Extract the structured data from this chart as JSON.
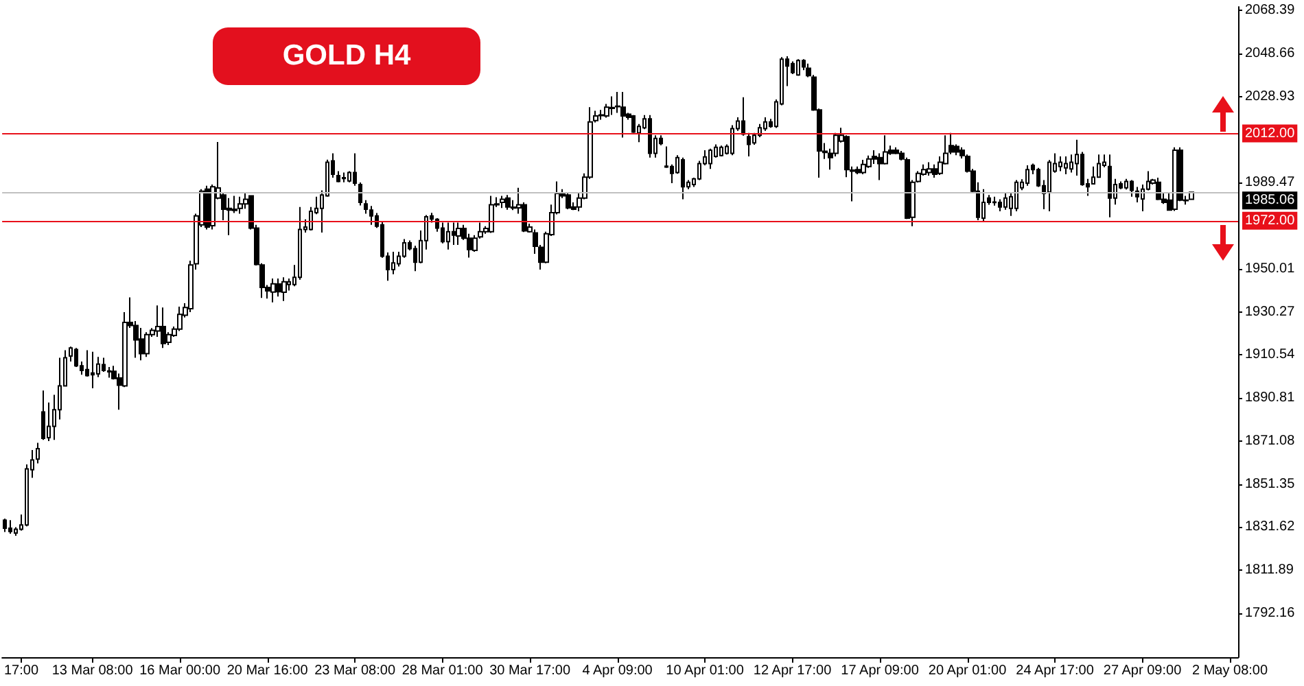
{
  "chart_data": {
    "type": "candlestick",
    "title": "GOLD H4",
    "color": "#000000",
    "categories": [
      null,
      null,
      null,
      "17:00",
      null,
      null,
      null,
      null,
      null,
      null,
      null,
      null,
      null,
      null,
      null,
      null,
      "13 Mar 08:00",
      null,
      null,
      null,
      null,
      null,
      null,
      null,
      null,
      null,
      null,
      null,
      null,
      null,
      null,
      null,
      "16 Mar 00:00",
      null,
      null,
      null,
      null,
      null,
      null,
      null,
      null,
      null,
      null,
      null,
      null,
      null,
      null,
      null,
      "20 Mar 16:00",
      null,
      null,
      null,
      null,
      null,
      null,
      null,
      null,
      null,
      null,
      null,
      null,
      null,
      null,
      null,
      "23 Mar 08:00",
      null,
      null,
      null,
      null,
      null,
      null,
      null,
      null,
      null,
      null,
      null,
      null,
      null,
      null,
      null,
      "28 Mar 01:00",
      null,
      null,
      null,
      null,
      null,
      null,
      null,
      null,
      null,
      null,
      null,
      null,
      null,
      null,
      null,
      "30 Mar 17:00",
      null,
      null,
      null,
      null,
      null,
      null,
      null,
      null,
      null,
      null,
      null,
      null,
      null,
      null,
      null,
      "4 Apr 09:00",
      null,
      null,
      null,
      null,
      null,
      null,
      null,
      null,
      null,
      null,
      null,
      null,
      null,
      null,
      null,
      "10 Apr 01:00",
      null,
      null,
      null,
      null,
      null,
      null,
      null,
      null,
      null,
      null,
      null,
      null,
      null,
      null,
      null,
      "12 Apr 17:00",
      null,
      null,
      null,
      null,
      null,
      null,
      null,
      null,
      null,
      null,
      null,
      null,
      null,
      null,
      null,
      "17 Apr 09:00",
      null,
      null,
      null,
      null,
      null,
      null,
      null,
      null,
      null,
      null,
      null,
      null,
      null,
      null,
      null,
      "20 Apr 01:00",
      null,
      null,
      null,
      null,
      null,
      null,
      null,
      null,
      null,
      null,
      null,
      null,
      null,
      null,
      null,
      "24 Apr 17:00",
      null,
      null,
      null,
      null,
      null,
      null,
      null,
      null,
      null,
      null,
      null,
      null,
      null,
      null,
      null,
      "27 Apr 09:00",
      null,
      null,
      null,
      null,
      null,
      null,
      null,
      null,
      null,
      null,
      null,
      null,
      null,
      null,
      null,
      "2 May 08:00",
      null
    ],
    "ohlc": [
      [
        1834.8,
        1835.5,
        1829.4,
        1831.1
      ],
      [
        1831.1,
        1834.8,
        1828.6,
        1829.6
      ],
      [
        1828.9,
        1831.6,
        1827.6,
        1830.6
      ],
      [
        1830.6,
        1837.4,
        1830.0,
        1832.6
      ],
      [
        1832.6,
        1860.3,
        1832.0,
        1858.3
      ],
      [
        1857.9,
        1866.9,
        1854.2,
        1862.4
      ],
      [
        1862.8,
        1870.2,
        1860.8,
        1867.6
      ],
      [
        1884.4,
        1894.2,
        1871.6,
        1872.3
      ],
      [
        1872.6,
        1888.7,
        1871.0,
        1877.8
      ],
      [
        1877.8,
        1892.2,
        1871.6,
        1885.4
      ],
      [
        1885.4,
        1909.2,
        1880.9,
        1896.3
      ],
      [
        1896.3,
        1912.7,
        1896.0,
        1909.2
      ],
      [
        1910.0,
        1914.3,
        1907.5,
        1913.7
      ],
      [
        1913.0,
        1913.7,
        1905.0,
        1905.5
      ],
      [
        1905.5,
        1907.5,
        1901.4,
        1903.4
      ],
      [
        1903.8,
        1912.7,
        1900.6,
        1901.0
      ],
      [
        1902.2,
        1912.0,
        1895.2,
        1901.4
      ],
      [
        1901.8,
        1909.6,
        1900.3,
        1906.3
      ],
      [
        1906.1,
        1909.2,
        1902.8,
        1903.4
      ],
      [
        1903.2,
        1905.0,
        1900.1,
        1902.8
      ],
      [
        1903.0,
        1905.5,
        1899.2,
        1899.7
      ],
      [
        1899.9,
        1902.0,
        1885.4,
        1896.6
      ],
      [
        1896.3,
        1930.1,
        1895.8,
        1925.4
      ],
      [
        1925.4,
        1936.9,
        1922.9,
        1924.0
      ],
      [
        1924.0,
        1926.0,
        1909.2,
        1917.4
      ],
      [
        1917.8,
        1922.9,
        1908.0,
        1911.1
      ],
      [
        1911.1,
        1920.9,
        1909.6,
        1919.8
      ],
      [
        1919.8,
        1922.8,
        1918.8,
        1921.8
      ],
      [
        1921.5,
        1933.2,
        1918.8,
        1923.5
      ],
      [
        1923.5,
        1932.2,
        1913.7,
        1915.7
      ],
      [
        1916.3,
        1920.9,
        1915.0,
        1919.8
      ],
      [
        1919.4,
        1923.5,
        1918.8,
        1922.3
      ],
      [
        1922.3,
        1932.6,
        1921.5,
        1929.1
      ],
      [
        1928.7,
        1934.2,
        1927.7,
        1932.2
      ],
      [
        1931.7,
        1953.7,
        1930.1,
        1951.7
      ],
      [
        1952.3,
        1975.2,
        1949.6,
        1974.2
      ],
      [
        1970.1,
        1986.5,
        1969.1,
        1985.5
      ],
      [
        1986.5,
        1988.0,
        1968.0,
        1969.1
      ],
      [
        1969.7,
        1988.6,
        1968.0,
        1987.6
      ],
      [
        1982.4,
        2008.1,
        1981.8,
        1987.0
      ],
      [
        1983.8,
        1984.5,
        1972.2,
        1977.3
      ],
      [
        1977.7,
        1982.4,
        1965.4,
        1976.9
      ],
      [
        1977.3,
        1983.4,
        1975.5,
        1976.7
      ],
      [
        1977.7,
        1983.0,
        1975.2,
        1979.7
      ],
      [
        1979.7,
        1984.5,
        1977.5,
        1981.8
      ],
      [
        1983.4,
        1983.6,
        1968.0,
        1968.6
      ],
      [
        1968.6,
        1970.1,
        1951.5,
        1952.0
      ],
      [
        1951.7,
        1952.5,
        1936.6,
        1941.4
      ],
      [
        1941.4,
        1942.5,
        1936.3,
        1939.9
      ],
      [
        1939.3,
        1945.5,
        1934.6,
        1943.1
      ],
      [
        1943.0,
        1945.5,
        1937.3,
        1939.5
      ],
      [
        1939.2,
        1946.1,
        1935.2,
        1944.0
      ],
      [
        1942.8,
        1945.5,
        1940.0,
        1944.0
      ],
      [
        1942.8,
        1951.7,
        1942.0,
        1946.1
      ],
      [
        1946.1,
        1978.3,
        1945.0,
        1968.0
      ],
      [
        1968.0,
        1972.6,
        1966.6,
        1969.1
      ],
      [
        1968.0,
        1978.3,
        1967.5,
        1976.3
      ],
      [
        1975.7,
        1983.0,
        1975.0,
        1977.7
      ],
      [
        1977.7,
        1985.9,
        1966.6,
        1983.8
      ],
      [
        1983.4,
        2000.0,
        1983.0,
        1998.8
      ],
      [
        1999.4,
        2002.9,
        1991.7,
        1993.3
      ],
      [
        1992.7,
        1994.7,
        1989.6,
        1990.0
      ],
      [
        1991.7,
        1994.1,
        1989.6,
        1991.3
      ],
      [
        1990.2,
        1994.7,
        1989.6,
        1994.1
      ],
      [
        1994.1,
        2002.9,
        1988.0,
        1989.2
      ],
      [
        1988.6,
        1989.5,
        1979.0,
        1980.4
      ],
      [
        1979.7,
        1981.4,
        1975.2,
        1977.3
      ],
      [
        1976.9,
        1978.8,
        1970.1,
        1974.2
      ],
      [
        1974.2,
        1975.5,
        1968.7,
        1969.5
      ],
      [
        1970.1,
        1971.5,
        1955.0,
        1955.7
      ],
      [
        1955.7,
        1957.5,
        1944.5,
        1949.6
      ],
      [
        1949.6,
        1957.8,
        1947.5,
        1952.7
      ],
      [
        1952.3,
        1957.8,
        1951.0,
        1955.7
      ],
      [
        1955.7,
        1963.6,
        1955.0,
        1961.9
      ],
      [
        1961.9,
        1963.0,
        1958.4,
        1959.2
      ],
      [
        1959.2,
        1960.5,
        1948.9,
        1953.0
      ],
      [
        1953.0,
        1967.5,
        1952.5,
        1962.9
      ],
      [
        1962.9,
        1974.6,
        1958.8,
        1973.8
      ],
      [
        1974.2,
        1975.6,
        1971.1,
        1972.8
      ],
      [
        1972.6,
        1973.2,
        1967.0,
        1968.6
      ],
      [
        1968.6,
        1971.1,
        1961.6,
        1962.4
      ],
      [
        1962.4,
        1971.1,
        1958.8,
        1967.0
      ],
      [
        1967.0,
        1971.1,
        1960.9,
        1965.4
      ],
      [
        1965.0,
        1971.1,
        1960.9,
        1968.5
      ],
      [
        1968.5,
        1970.1,
        1963.2,
        1964.0
      ],
      [
        1964.0,
        1966.0,
        1955.1,
        1958.8
      ],
      [
        1958.4,
        1965.4,
        1957.8,
        1964.0
      ],
      [
        1964.6,
        1971.1,
        1963.8,
        1967.0
      ],
      [
        1967.0,
        1969.5,
        1966.0,
        1968.5
      ],
      [
        1967.0,
        1983.4,
        1966.4,
        1979.3
      ],
      [
        1979.3,
        1982.8,
        1978.3,
        1979.7
      ],
      [
        1980.4,
        1983.4,
        1977.8,
        1981.8
      ],
      [
        1982.4,
        1983.8,
        1977.0,
        1978.3
      ],
      [
        1978.2,
        1981.4,
        1976.9,
        1977.8
      ],
      [
        1977.9,
        1987.1,
        1975.2,
        1979.3
      ],
      [
        1979.3,
        1980.4,
        1966.8,
        1967.4
      ],
      [
        1967.0,
        1970.7,
        1966.6,
        1969.1
      ],
      [
        1966.4,
        1968.0,
        1956.8,
        1960.3
      ],
      [
        1959.8,
        1960.9,
        1949.6,
        1953.0
      ],
      [
        1953.0,
        1967.0,
        1952.5,
        1966.0
      ],
      [
        1965.6,
        1979.4,
        1965.0,
        1975.7
      ],
      [
        1975.7,
        1990.0,
        1974.9,
        1984.5
      ],
      [
        1984.5,
        1986.5,
        1982.4,
        1983.4
      ],
      [
        1983.8,
        1984.5,
        1977.3,
        1977.9
      ],
      [
        1978.3,
        1980.4,
        1976.9,
        1977.3
      ],
      [
        1978.3,
        1984.5,
        1976.3,
        1982.4
      ],
      [
        1982.4,
        1993.7,
        1981.8,
        1992.0
      ],
      [
        1992.0,
        2024.0,
        1991.2,
        2017.3
      ],
      [
        2017.9,
        2022.4,
        2017.0,
        2020.0
      ],
      [
        2020.5,
        2022.8,
        2018.3,
        2020.2
      ],
      [
        2020.0,
        2025.5,
        2019.2,
        2024.0
      ],
      [
        2023.5,
        2029.0,
        2020.5,
        2023.9
      ],
      [
        2024.3,
        2031.0,
        2021.4,
        2024.5
      ],
      [
        2024.0,
        2031.0,
        2010.1,
        2020.0
      ],
      [
        2020.8,
        2021.4,
        2018.3,
        2019.4
      ],
      [
        2020.0,
        2020.4,
        2012.2,
        2012.6
      ],
      [
        2012.2,
        2016.3,
        2008.0,
        2015.2
      ],
      [
        2014.6,
        2020.4,
        2014.0,
        2018.7
      ],
      [
        2018.7,
        2020.4,
        2000.9,
        2002.9
      ],
      [
        2002.9,
        2011.1,
        2000.9,
        2009.7
      ],
      [
        2009.7,
        2011.1,
        2006.6,
        2007.4
      ],
      [
        1997.0,
        2006.0,
        1996.2,
        1996.6
      ],
      [
        1996.8,
        1997.8,
        1989.2,
        1993.7
      ],
      [
        1994.1,
        2002.0,
        1993.5,
        2000.9
      ],
      [
        1999.9,
        2000.9,
        1981.8,
        1987.6
      ],
      [
        1987.6,
        1990.6,
        1986.5,
        1989.6
      ],
      [
        1988.6,
        1991.7,
        1987.5,
        1991.2
      ],
      [
        1991.2,
        1999.4,
        1990.6,
        1998.2
      ],
      [
        1998.2,
        2004.3,
        1997.4,
        2001.2
      ],
      [
        1998.2,
        2005.0,
        1995.7,
        2004.3
      ],
      [
        2001.5,
        2007.0,
        2000.9,
        2005.6
      ],
      [
        2001.9,
        2006.4,
        2001.5,
        2005.6
      ],
      [
        2002.9,
        2007.0,
        2002.3,
        2006.0
      ],
      [
        2002.9,
        2015.8,
        2002.0,
        2014.2
      ],
      [
        2014.2,
        2019.4,
        2013.2,
        2017.7
      ],
      [
        2017.7,
        2028.6,
        2011.0,
        2011.7
      ],
      [
        2010.5,
        2012.2,
        2001.5,
        2007.0
      ],
      [
        2007.7,
        2012.2,
        2006.8,
        2011.1
      ],
      [
        2011.1,
        2016.3,
        2010.3,
        2014.6
      ],
      [
        2014.2,
        2019.4,
        2013.2,
        2017.3
      ],
      [
        2017.3,
        2018.7,
        2014.6,
        2015.2
      ],
      [
        2015.2,
        2027.6,
        2014.5,
        2026.5
      ],
      [
        2025.5,
        2047.0,
        2024.9,
        2046.0
      ],
      [
        2046.0,
        2047.4,
        2033.7,
        2042.9
      ],
      [
        2044.0,
        2045.0,
        2039.2,
        2039.9
      ],
      [
        2038.8,
        2046.0,
        2038.4,
        2045.4
      ],
      [
        2045.4,
        2046.0,
        2041.0,
        2042.5
      ],
      [
        2041.9,
        2044.0,
        2037.8,
        2038.5
      ],
      [
        2037.8,
        2038.8,
        2022.4,
        2022.8
      ],
      [
        2022.8,
        2023.4,
        1991.7,
        2004.0
      ],
      [
        2003.8,
        2007.6,
        2000.3,
        2003.3
      ],
      [
        2002.9,
        2005.0,
        1995.4,
        2000.9
      ],
      [
        2002.9,
        2012.2,
        2001.5,
        2011.1
      ],
      [
        2008.5,
        2014.6,
        2007.8,
        2011.1
      ],
      [
        2010.5,
        2011.1,
        1992.0,
        1995.4
      ],
      [
        1995.2,
        1996.8,
        1980.9,
        1994.7
      ],
      [
        1995.4,
        1996.8,
        1993.3,
        1994.1
      ],
      [
        1994.1,
        1999.9,
        1993.3,
        1997.8
      ],
      [
        1996.8,
        2001.9,
        1996.2,
        2000.3
      ],
      [
        2001.5,
        2004.3,
        1998.0,
        2000.3
      ],
      [
        2000.9,
        2002.9,
        1990.6,
        1998.2
      ],
      [
        1998.2,
        2011.1,
        1997.8,
        2003.5
      ],
      [
        2004.3,
        2006.4,
        2002.2,
        2002.9
      ],
      [
        2004.3,
        2005.6,
        2002.5,
        2002.9
      ],
      [
        2002.9,
        2004.0,
        1999.7,
        2000.3
      ],
      [
        1999.9,
        2000.9,
        1972.8,
        1973.2
      ],
      [
        1973.6,
        1990.6,
        1969.5,
        1989.6
      ],
      [
        1990.0,
        1994.7,
        1989.5,
        1993.7
      ],
      [
        1993.3,
        1997.8,
        1992.7,
        1995.4
      ],
      [
        1994.1,
        1998.8,
        1992.7,
        1995.7
      ],
      [
        1995.7,
        1997.8,
        1991.7,
        1993.3
      ],
      [
        1993.7,
        2001.5,
        1993.0,
        1998.8
      ],
      [
        1998.2,
        2011.1,
        1997.8,
        2002.9
      ],
      [
        2006.4,
        2012.2,
        2002.5,
        2003.5
      ],
      [
        2006.0,
        2007.0,
        2002.0,
        2003.5
      ],
      [
        2004.3,
        2005.6,
        2000.5,
        2001.9
      ],
      [
        2001.5,
        2002.3,
        1994.1,
        1994.7
      ],
      [
        1994.7,
        1995.7,
        1985.0,
        1985.5
      ],
      [
        1985.5,
        1989.6,
        1972.2,
        1973.6
      ],
      [
        1973.2,
        1986.5,
        1971.5,
        1980.4
      ],
      [
        1982.4,
        1983.8,
        1979.3,
        1980.4
      ],
      [
        1980.6,
        1983.0,
        1978.9,
        1980.3
      ],
      [
        1980.4,
        1981.8,
        1976.3,
        1978.3
      ],
      [
        1978.3,
        1985.1,
        1977.0,
        1982.4
      ],
      [
        1977.7,
        1984.5,
        1974.2,
        1983.0
      ],
      [
        1977.7,
        1990.6,
        1976.3,
        1989.6
      ],
      [
        1987.1,
        1991.0,
        1986.0,
        1989.6
      ],
      [
        1989.2,
        1997.4,
        1988.0,
        1995.4
      ],
      [
        1997.4,
        1998.2,
        1993.3,
        1995.4
      ],
      [
        1995.4,
        1996.2,
        1987.5,
        1988.0
      ],
      [
        1988.0,
        1990.6,
        1977.3,
        1984.5
      ],
      [
        1985.1,
        1999.8,
        1976.3,
        1998.8
      ],
      [
        1994.7,
        2002.9,
        1994.0,
        1998.2
      ],
      [
        1996.8,
        2001.5,
        1994.7,
        1998.8
      ],
      [
        1996.2,
        2001.5,
        1993.3,
        1998.2
      ],
      [
        1995.7,
        2002.3,
        1994.1,
        1998.8
      ],
      [
        1998.2,
        2009.1,
        1992.7,
        2002.3
      ],
      [
        2002.3,
        2003.5,
        1988.0,
        1988.6
      ],
      [
        1988.9,
        1991.2,
        1983.4,
        1987.6
      ],
      [
        1988.9,
        1996.8,
        1988.6,
        1992.0
      ],
      [
        1992.0,
        2002.3,
        1991.7,
        1998.2
      ],
      [
        1997.4,
        2002.3,
        1996.5,
        1998.8
      ],
      [
        1996.8,
        2002.3,
        1973.6,
        1982.4
      ],
      [
        1982.4,
        1991.2,
        1979.4,
        1988.6
      ],
      [
        1988.9,
        1990.0,
        1986.5,
        1987.1
      ],
      [
        1987.1,
        1991.2,
        1986.3,
        1990.0
      ],
      [
        1990.0,
        1990.6,
        1983.0,
        1985.9
      ],
      [
        1985.5,
        1987.5,
        1980.4,
        1983.0
      ],
      [
        1982.0,
        1988.6,
        1976.3,
        1986.5
      ],
      [
        1986.5,
        1994.7,
        1985.9,
        1990.0
      ],
      [
        1989.2,
        1991.2,
        1988.6,
        1990.6
      ],
      [
        1989.6,
        1991.7,
        1981.4,
        1981.8
      ],
      [
        1981.8,
        1984.5,
        1979.7,
        1980.4
      ],
      [
        1981.4,
        1984.5,
        1976.9,
        1976.9
      ],
      [
        1977.3,
        2005.6,
        1976.5,
        2004.3
      ],
      [
        2004.3,
        2005.6,
        1981.0,
        1981.4
      ],
      [
        1981.4,
        1983.4,
        1979.4,
        1981.2
      ],
      [
        1981.8,
        1985.3,
        1981.6,
        1985.06
      ],
      null,
      null,
      null,
      null,
      null,
      null,
      null,
      null
    ],
    "ylim": [
      1772,
      2070
    ],
    "yticks": [
      1792.16,
      1811.89,
      1831.62,
      1851.35,
      1871.08,
      1890.81,
      1910.54,
      1930.27,
      1950.01,
      1989.47,
      2028.93,
      2048.66,
      2068.39
    ],
    "ref_lines": [
      {
        "axis": "y",
        "value": 2012,
        "label": "2012.00",
        "color": "#e8101a"
      },
      {
        "axis": "y",
        "value": 1985.06,
        "label": "1985.06",
        "color": "#c0c0c0"
      },
      {
        "axis": "y",
        "value": 1972,
        "label": "1972.00",
        "color": "#e8101a"
      }
    ]
  }
}
